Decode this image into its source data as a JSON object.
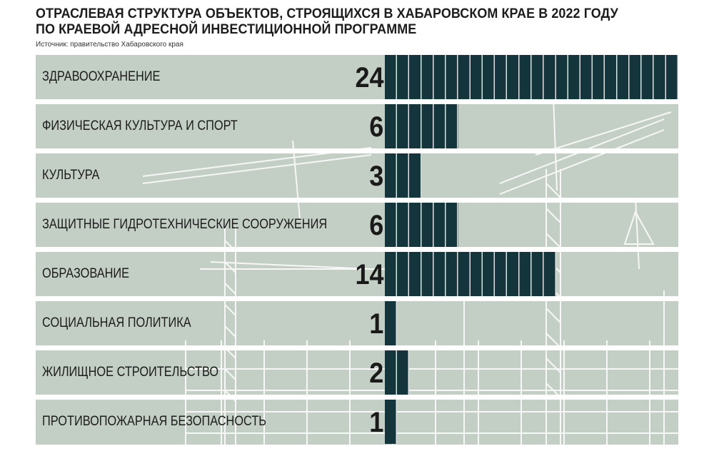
{
  "title_lines": [
    "ОТРАСЛЕВАЯ СТРУКТУРА ОБЪЕКТОВ, СТРОЯЩИХСЯ В ХАБАРОВСКОМ КРАЕ В 2022 ГОДУ",
    "ПО КРАЕВОЙ АДРЕСНОЙ ИНВЕСТИЦИОННОЙ ПРОГРАММЕ"
  ],
  "source": "Источник: правительство Хабаровского края",
  "colors": {
    "bar": "#14353b",
    "row_background": "#c3cfc4",
    "separator": "#ffffff"
  },
  "chart_data": {
    "type": "bar",
    "orientation": "horizontal",
    "title": "ОТРАСЛЕВАЯ СТРУКТУРА ОБЪЕКТОВ, СТРОЯЩИХСЯ В ХАБАРОВСКОМ КРАЕ В 2022 ГОДУ ПО КРАЕВОЙ АДРЕСНОЙ ИНВЕСТИЦИОННОЙ ПРОГРАММЕ",
    "categories": [
      "ЗДРАВООХРАНЕНИЕ",
      "ФИЗИЧЕСКАЯ КУЛЬТУРА И СПОРТ",
      "КУЛЬТУРА",
      "ЗАЩИТНЫЕ ГИДРОТЕХНИЧЕСКИЕ СООРУЖЕНИЯ",
      "ОБРАЗОВАНИЕ",
      "СОЦИАЛЬНАЯ ПОЛИТИКА",
      "ЖИЛИЩНОЕ СТРОИТЕЛЬСТВО",
      "ПРОТИВОПОЖАРНАЯ БЕЗОПАСНОСТЬ"
    ],
    "values": [
      24,
      6,
      3,
      6,
      14,
      1,
      2,
      1
    ],
    "labels": [
      "24",
      "6",
      "3",
      "6",
      "14",
      "1",
      "2",
      "1"
    ],
    "xlim": [
      0,
      24
    ],
    "grid": false,
    "legend": "none"
  }
}
